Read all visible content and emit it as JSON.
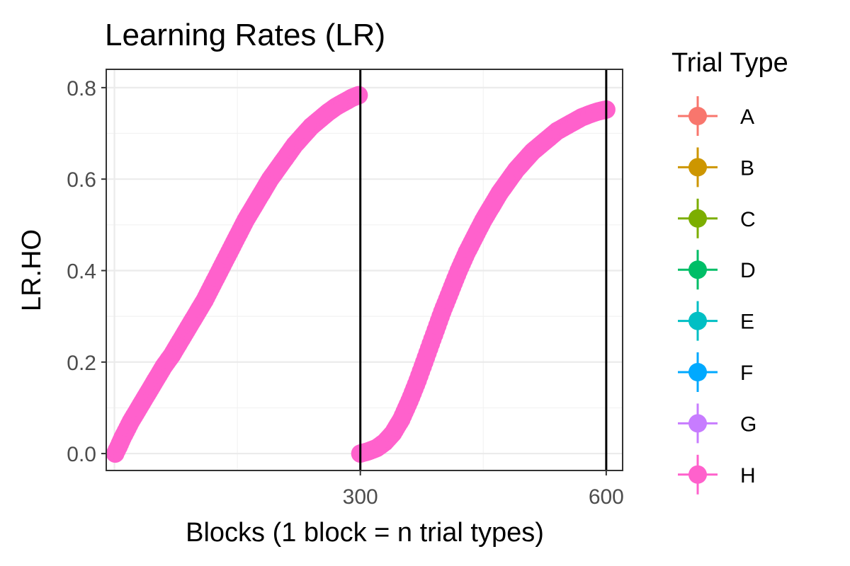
{
  "chart_data": {
    "type": "scatter",
    "title": "Learning Rates (LR)",
    "xlabel": "Blocks (1 block = n trial types)",
    "ylabel": "LR.HO",
    "xlim": [
      -10,
      620
    ],
    "ylim": [
      -0.037,
      0.84
    ],
    "x_ticks": [
      300,
      600
    ],
    "y_ticks": [
      0.0,
      0.2,
      0.4,
      0.6,
      0.8
    ],
    "y_tick_labels": [
      "0.0",
      "0.2",
      "0.4",
      "0.6",
      "0.8"
    ],
    "grid": true,
    "vlines": [
      300,
      600
    ],
    "legend": {
      "title": "Trial Type",
      "position": "right",
      "entries": [
        {
          "name": "A",
          "color": "#F8766D"
        },
        {
          "name": "B",
          "color": "#CD9600"
        },
        {
          "name": "C",
          "color": "#7CAE00"
        },
        {
          "name": "D",
          "color": "#00BE67"
        },
        {
          "name": "E",
          "color": "#00BFC4"
        },
        {
          "name": "F",
          "color": "#00A9FF"
        },
        {
          "name": "G",
          "color": "#C77CFF"
        },
        {
          "name": "H",
          "color": "#FF61CC"
        }
      ]
    },
    "series": [
      {
        "name": "H",
        "color": "#FF61CC",
        "points": [
          [
            1,
            0.0
          ],
          [
            5,
            0.015
          ],
          [
            10,
            0.035
          ],
          [
            20,
            0.07
          ],
          [
            30,
            0.1
          ],
          [
            40,
            0.13
          ],
          [
            50,
            0.16
          ],
          [
            60,
            0.19
          ],
          [
            70,
            0.215
          ],
          [
            80,
            0.245
          ],
          [
            90,
            0.275
          ],
          [
            100,
            0.305
          ],
          [
            110,
            0.335
          ],
          [
            120,
            0.37
          ],
          [
            130,
            0.405
          ],
          [
            140,
            0.44
          ],
          [
            150,
            0.475
          ],
          [
            160,
            0.51
          ],
          [
            170,
            0.54
          ],
          [
            180,
            0.57
          ],
          [
            190,
            0.6
          ],
          [
            200,
            0.625
          ],
          [
            210,
            0.65
          ],
          [
            220,
            0.675
          ],
          [
            230,
            0.695
          ],
          [
            240,
            0.715
          ],
          [
            250,
            0.73
          ],
          [
            260,
            0.745
          ],
          [
            270,
            0.758
          ],
          [
            280,
            0.768
          ],
          [
            290,
            0.778
          ],
          [
            300,
            0.785
          ],
          [
            300,
            0.0
          ],
          [
            310,
            0.005
          ],
          [
            320,
            0.012
          ],
          [
            330,
            0.025
          ],
          [
            340,
            0.045
          ],
          [
            350,
            0.075
          ],
          [
            360,
            0.115
          ],
          [
            370,
            0.16
          ],
          [
            380,
            0.21
          ],
          [
            390,
            0.26
          ],
          [
            400,
            0.31
          ],
          [
            410,
            0.355
          ],
          [
            420,
            0.4
          ],
          [
            430,
            0.44
          ],
          [
            440,
            0.475
          ],
          [
            450,
            0.51
          ],
          [
            460,
            0.54
          ],
          [
            470,
            0.57
          ],
          [
            480,
            0.595
          ],
          [
            490,
            0.62
          ],
          [
            500,
            0.64
          ],
          [
            510,
            0.66
          ],
          [
            520,
            0.675
          ],
          [
            530,
            0.69
          ],
          [
            540,
            0.705
          ],
          [
            550,
            0.715
          ],
          [
            560,
            0.725
          ],
          [
            570,
            0.735
          ],
          [
            580,
            0.742
          ],
          [
            590,
            0.748
          ],
          [
            600,
            0.752
          ]
        ]
      }
    ]
  }
}
